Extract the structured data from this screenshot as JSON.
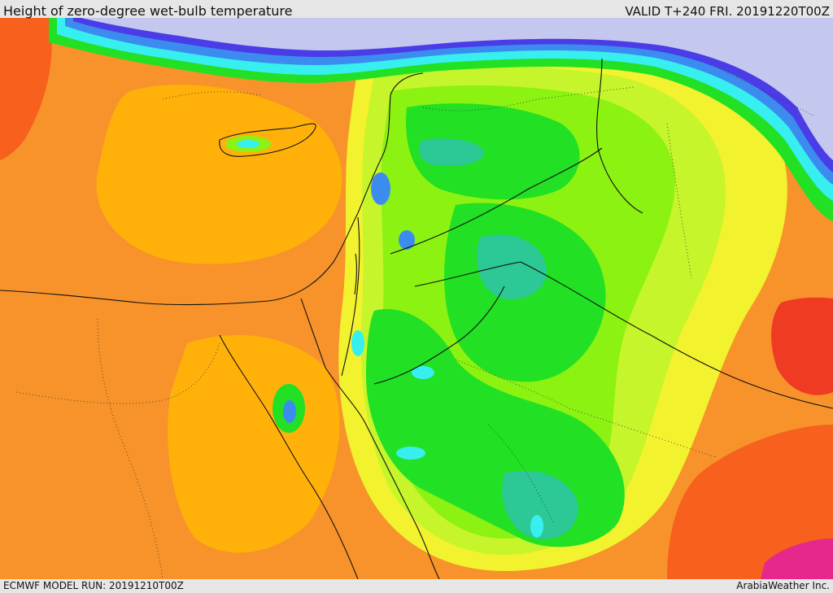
{
  "header": {
    "title": "Height of zero-degree wet-bulb temperature",
    "valid": "VALID T+240 FRI. 20191220T00Z"
  },
  "footer": {
    "model_run": "ECMWF MODEL RUN: 20191210T00Z",
    "credit": "ArabiaWeather Inc."
  },
  "colors": {
    "deep_orange": "#f7601d",
    "orange": "#f7932a",
    "amber": "#ffb10a",
    "yellow_orange": "#ffd21b",
    "yellow": "#f2f22e",
    "light_green": "#c5f52a",
    "lime": "#8cf212",
    "green": "#22e023",
    "teal": "#2cc896",
    "cyan": "#37efef",
    "blue": "#3c8cf0",
    "indigo": "#4a3ce6",
    "lavender": "#c4c8ee",
    "magenta": "#e6288c",
    "red": "#ef3a24"
  }
}
